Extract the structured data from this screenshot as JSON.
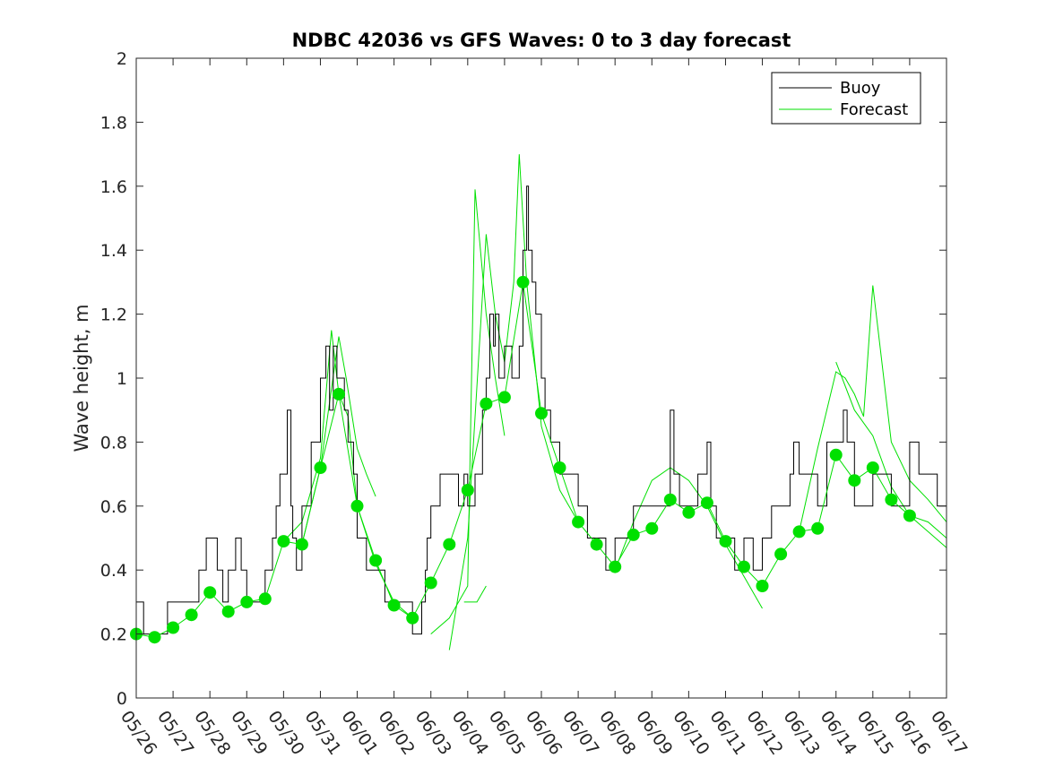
{
  "chart_data": {
    "type": "line",
    "title": "NDBC 42036 vs GFS Waves: 0 to 3 day forecast",
    "xlabel": "",
    "ylabel": "Wave height, m",
    "xlim": [
      "05/26",
      "06/17"
    ],
    "ylim": [
      0,
      2
    ],
    "y_ticks": [
      "0",
      "0.2",
      "0.4",
      "0.6",
      "0.8",
      "1",
      "1.2",
      "1.4",
      "1.6",
      "1.8",
      "2"
    ],
    "x_ticks": [
      "05/26",
      "05/27",
      "05/28",
      "05/29",
      "05/30",
      "05/31",
      "06/01",
      "06/02",
      "06/03",
      "06/04",
      "06/05",
      "06/06",
      "06/07",
      "06/08",
      "06/09",
      "06/10",
      "06/11",
      "06/12",
      "06/13",
      "06/14",
      "06/15",
      "06/16",
      "06/17"
    ],
    "grid": false,
    "legend": {
      "position": "top-right",
      "entries": [
        {
          "name": "Buoy",
          "color": "#000000"
        },
        {
          "name": "Forecast",
          "color": "#00e000"
        }
      ]
    },
    "series": [
      {
        "name": "Buoy",
        "color": "#000000",
        "x": [
          0,
          0.1,
          0.2,
          0.3,
          0.5,
          0.75,
          0.85,
          1.0,
          1.25,
          1.5,
          1.7,
          1.8,
          1.9,
          2.0,
          2.2,
          2.35,
          2.5,
          2.7,
          2.85,
          3.0,
          3.25,
          3.5,
          3.7,
          3.8,
          3.9,
          4.0,
          4.1,
          4.2,
          4.25,
          4.35,
          4.5,
          4.75,
          5.0,
          5.15,
          5.25,
          5.35,
          5.45,
          5.5,
          5.65,
          5.75,
          5.9,
          6.0,
          6.25,
          6.5,
          6.75,
          7.0,
          7.25,
          7.5,
          7.75,
          7.85,
          7.9,
          8.0,
          8.25,
          8.5,
          8.75,
          8.9,
          9.0,
          9.2,
          9.4,
          9.5,
          9.6,
          9.7,
          9.75,
          9.85,
          10.0,
          10.2,
          10.35,
          10.4,
          10.5,
          10.6,
          10.65,
          10.75,
          10.85,
          11.0,
          11.1,
          11.25,
          11.5,
          11.75,
          12.0,
          12.25,
          12.5,
          12.75,
          13.0,
          13.25,
          13.5,
          13.75,
          14.0,
          14.25,
          14.5,
          14.6,
          14.75,
          15.0,
          15.25,
          15.5,
          15.6,
          15.75,
          16.0,
          16.25,
          16.5,
          16.75,
          17.0,
          17.25,
          17.5,
          17.75,
          17.85,
          18.0,
          18.25,
          18.5,
          18.75,
          19.0,
          19.2,
          19.3,
          19.5,
          19.75,
          20.0,
          20.25,
          20.5,
          20.75,
          21.0,
          21.25,
          21.5,
          21.75,
          22.0
        ],
        "values": [
          0.3,
          0.3,
          0.2,
          0.2,
          0.2,
          0.2,
          0.3,
          0.3,
          0.3,
          0.3,
          0.4,
          0.4,
          0.5,
          0.5,
          0.4,
          0.3,
          0.4,
          0.5,
          0.4,
          0.3,
          0.3,
          0.4,
          0.5,
          0.6,
          0.7,
          0.7,
          0.9,
          0.6,
          0.5,
          0.4,
          0.6,
          0.8,
          1.0,
          1.1,
          0.9,
          1.1,
          1.0,
          1.0,
          0.9,
          0.8,
          0.7,
          0.5,
          0.4,
          0.4,
          0.3,
          0.3,
          0.3,
          0.2,
          0.3,
          0.4,
          0.5,
          0.6,
          0.7,
          0.7,
          0.6,
          0.7,
          0.6,
          0.7,
          0.9,
          1.0,
          1.2,
          1.1,
          1.2,
          1.0,
          1.1,
          1.0,
          1.0,
          1.1,
          1.4,
          1.6,
          1.4,
          1.3,
          1.2,
          1.0,
          0.9,
          0.8,
          0.7,
          0.7,
          0.6,
          0.5,
          0.5,
          0.4,
          0.5,
          0.5,
          0.6,
          0.6,
          0.6,
          0.6,
          0.9,
          0.7,
          0.6,
          0.6,
          0.7,
          0.8,
          0.6,
          0.5,
          0.5,
          0.4,
          0.5,
          0.4,
          0.5,
          0.6,
          0.6,
          0.7,
          0.8,
          0.7,
          0.7,
          0.6,
          0.8,
          0.8,
          0.9,
          0.8,
          0.6,
          0.6,
          0.7,
          0.7,
          0.6,
          0.6,
          0.8,
          0.7,
          0.7,
          0.6,
          0.6
        ]
      },
      {
        "name": "Forecast",
        "color": "#00e000",
        "x": [
          0,
          0.5,
          1.0,
          1.5,
          2.0,
          2.5,
          3.0,
          3.5,
          4.0,
          4.5,
          5.0,
          5.5,
          6.0,
          6.5,
          7.0,
          7.5,
          8.0,
          8.5,
          9.0,
          9.5,
          10.0,
          10.5,
          11.0,
          11.5,
          12.0,
          12.5,
          13.0,
          13.5,
          14.0,
          14.5,
          15.0,
          15.5,
          16.0,
          16.5,
          17.0,
          17.5,
          18.0,
          18.5,
          19.0,
          19.5,
          20.0,
          20.5,
          21.0,
          21.5,
          22.0
        ],
        "values": [
          0.2,
          0.19,
          0.22,
          0.26,
          0.33,
          0.27,
          0.3,
          0.31,
          0.49,
          0.48,
          0.72,
          0.95,
          0.6,
          0.43,
          0.29,
          0.25,
          0.36,
          0.48,
          0.65,
          0.92,
          0.94,
          1.3,
          0.89,
          0.72,
          0.55,
          0.48,
          0.41,
          0.51,
          0.53,
          0.62,
          0.58,
          0.61,
          0.49,
          0.41,
          0.35,
          0.45,
          0.52,
          0.53,
          0.76,
          0.68,
          0.72,
          0.62,
          0.57,
          0.55,
          0.5
        ]
      }
    ],
    "forecast_markers": {
      "x": [
        0,
        0.5,
        1.0,
        1.5,
        2.0,
        2.5,
        3.0,
        3.5,
        4.0,
        4.5,
        5.0,
        5.5,
        6.0,
        6.5,
        7.0,
        7.5,
        8.0,
        8.5,
        9.0,
        9.5,
        10.0,
        10.5,
        11.0,
        11.5,
        12.0,
        12.5,
        13.0,
        13.5,
        14.0,
        14.5,
        15.0,
        15.5,
        16.0,
        16.5,
        17.0,
        17.5,
        18.0,
        18.5,
        19.0,
        19.5,
        20.0,
        20.5,
        21.0
      ],
      "values": [
        0.2,
        0.19,
        0.22,
        0.26,
        0.33,
        0.27,
        0.3,
        0.31,
        0.49,
        0.48,
        0.72,
        0.95,
        0.6,
        0.43,
        0.29,
        0.25,
        0.36,
        0.48,
        0.65,
        0.92,
        0.94,
        1.3,
        0.89,
        0.72,
        0.55,
        0.48,
        0.41,
        0.51,
        0.53,
        0.62,
        0.58,
        0.61,
        0.49,
        0.41,
        0.35,
        0.45,
        0.52,
        0.53,
        0.76,
        0.68,
        0.72,
        0.62,
        0.57
      ],
      "color": "#00e000"
    },
    "forecast_runs": [
      {
        "x": [
          4.0,
          4.5,
          5.0,
          5.3,
          5.5,
          5.75,
          6.0,
          6.5,
          7.0,
          7.5
        ],
        "values": [
          0.49,
          0.55,
          0.75,
          1.15,
          0.95,
          0.88,
          0.6,
          0.42,
          0.3,
          0.25
        ]
      },
      {
        "x": [
          4.5,
          5.0,
          5.5,
          5.7,
          6.0,
          6.25,
          6.5
        ],
        "values": [
          0.48,
          0.72,
          1.13,
          1.0,
          0.78,
          0.7,
          0.63
        ]
      },
      {
        "x": [
          8.0,
          8.5,
          9.0,
          9.2,
          9.5,
          9.75,
          10.0
        ],
        "values": [
          0.2,
          0.25,
          0.35,
          1.59,
          1.2,
          1.0,
          0.82
        ]
      },
      {
        "x": [
          8.5,
          9.0,
          9.5,
          9.75,
          10.0,
          10.25,
          10.4,
          10.6,
          11.0,
          11.5,
          12.0
        ],
        "values": [
          0.15,
          0.5,
          1.45,
          1.2,
          1.05,
          1.3,
          1.7,
          1.3,
          0.85,
          0.65,
          0.55
        ]
      },
      {
        "x": [
          8.9,
          9.0,
          9.25,
          9.5
        ],
        "values": [
          0.3,
          0.3,
          0.3,
          0.35
        ]
      },
      {
        "x": [
          13.0,
          13.5,
          14.0,
          14.5,
          15.0,
          15.5,
          16.0,
          16.5,
          17.0
        ],
        "values": [
          0.4,
          0.55,
          0.68,
          0.72,
          0.68,
          0.6,
          0.48,
          0.38,
          0.28
        ]
      },
      {
        "x": [
          18.0,
          18.5,
          19.0,
          19.25,
          19.5,
          19.75,
          20.0,
          20.5,
          21.0,
          21.5,
          22.0
        ],
        "values": [
          0.52,
          0.78,
          1.02,
          1.0,
          0.95,
          0.88,
          1.29,
          0.8,
          0.68,
          0.62,
          0.55
        ]
      },
      {
        "x": [
          19.0,
          19.5,
          20.0,
          20.5,
          21.0,
          21.5,
          22.0
        ],
        "values": [
          1.05,
          0.9,
          0.82,
          0.66,
          0.57,
          0.52,
          0.47
        ]
      }
    ]
  }
}
